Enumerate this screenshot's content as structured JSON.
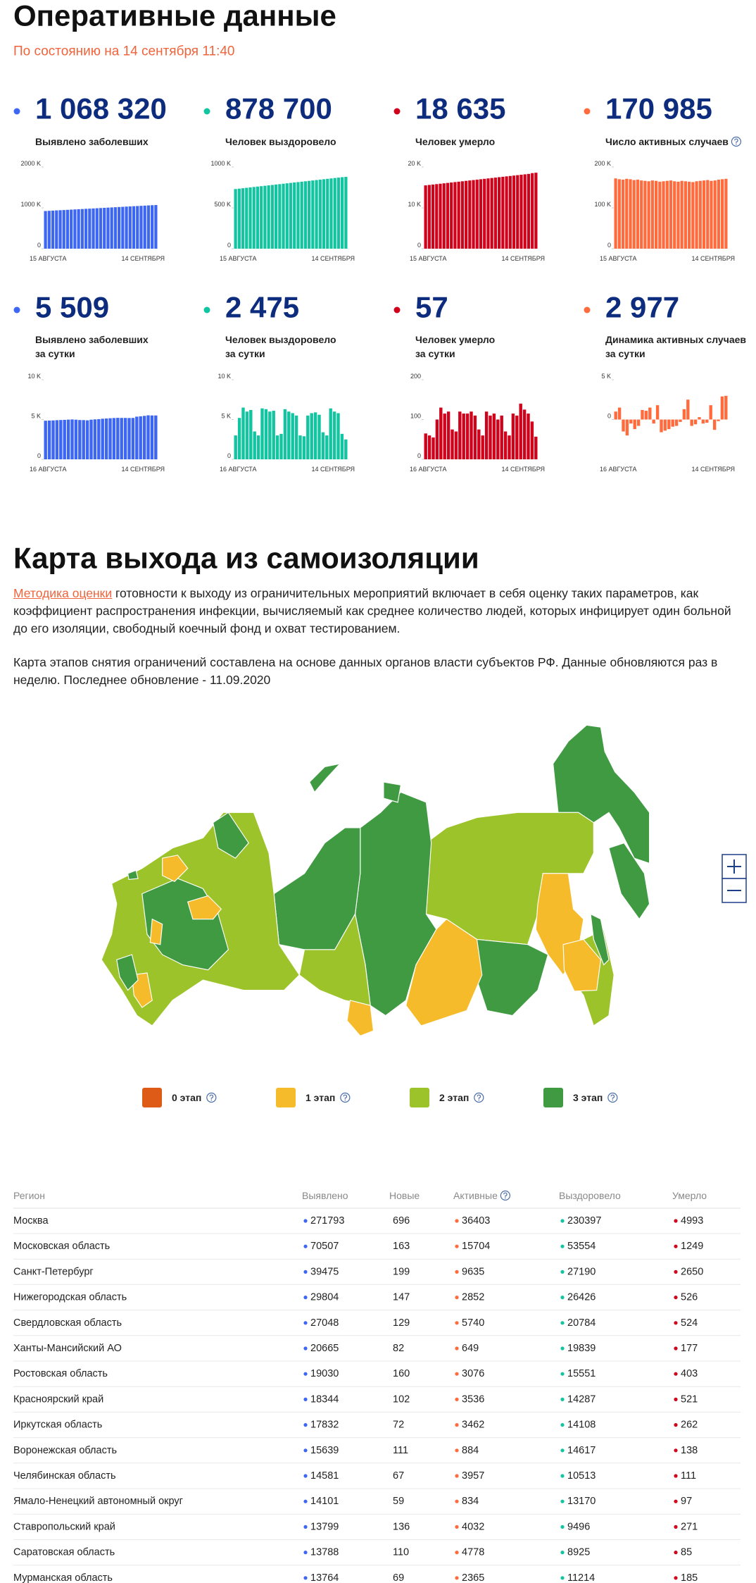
{
  "header": {
    "title": "Оперативные данные",
    "subtitle": "По состоянию на 14 сентября 11:40"
  },
  "chart_data": [
    {
      "type": "bar",
      "title": "1 068 320",
      "subtitle": [
        "Выявлено заболевших"
      ],
      "color": "#3d66f3",
      "categories": [
        "15 АВГУСТА",
        null,
        null,
        null,
        null,
        null,
        null,
        null,
        null,
        null,
        null,
        null,
        null,
        null,
        null,
        null,
        null,
        null,
        null,
        null,
        null,
        null,
        null,
        null,
        null,
        null,
        null,
        null,
        null,
        null,
        "14 СЕНТЯБРЯ"
      ],
      "values": [
        922,
        927,
        932,
        937,
        942,
        946,
        951,
        956,
        961,
        966,
        971,
        976,
        980,
        985,
        990,
        995,
        1000,
        1005,
        1010,
        1015,
        1020,
        1025,
        1030,
        1035,
        1040,
        1044,
        1049,
        1054,
        1059,
        1064,
        1068
      ],
      "ylim": [
        0,
        2000
      ],
      "yticks": [
        0,
        {
          "value": 1000,
          "label": "1000 K"
        },
        {
          "value": 2000,
          "label": "2000 K"
        }
      ]
    },
    {
      "type": "bar",
      "title": "878 700",
      "subtitle": [
        "Человек выздоровело"
      ],
      "color": "#13c4a0",
      "categories": [
        "15 АВГУСТА",
        null,
        null,
        null,
        null,
        null,
        null,
        null,
        null,
        null,
        null,
        null,
        null,
        null,
        null,
        null,
        null,
        null,
        null,
        null,
        null,
        null,
        null,
        null,
        null,
        null,
        null,
        null,
        null,
        null,
        "14 СЕНТЯБРЯ"
      ],
      "values": [
        730,
        735,
        740,
        745,
        750,
        755,
        760,
        765,
        770,
        775,
        780,
        785,
        790,
        795,
        800,
        805,
        810,
        815,
        820,
        825,
        830,
        835,
        840,
        845,
        850,
        855,
        860,
        865,
        870,
        875,
        879
      ],
      "ylim": [
        0,
        1000
      ],
      "yticks": [
        0,
        {
          "value": 500,
          "label": "500 K"
        },
        {
          "value": 1000,
          "label": "1000 K"
        }
      ]
    },
    {
      "type": "bar",
      "title": "18 635",
      "subtitle": [
        "Человек умерло"
      ],
      "color": "#d0021b",
      "categories": [
        "15 АВГУСТА",
        null,
        null,
        null,
        null,
        null,
        null,
        null,
        null,
        null,
        null,
        null,
        null,
        null,
        null,
        null,
        null,
        null,
        null,
        null,
        null,
        null,
        null,
        null,
        null,
        null,
        null,
        null,
        null,
        null,
        "14 СЕНТЯБРЯ"
      ],
      "values": [
        15.5,
        15.6,
        15.7,
        15.8,
        15.9,
        16.0,
        16.1,
        16.2,
        16.3,
        16.4,
        16.5,
        16.6,
        16.7,
        16.8,
        16.9,
        17.0,
        17.1,
        17.2,
        17.3,
        17.4,
        17.5,
        17.6,
        17.7,
        17.8,
        17.9,
        18.0,
        18.1,
        18.2,
        18.3,
        18.5,
        18.6
      ],
      "ylim": [
        0,
        20
      ],
      "yticks": [
        0,
        {
          "value": 10,
          "label": "10 K"
        },
        {
          "value": 20,
          "label": "20 K"
        }
      ]
    },
    {
      "type": "bar",
      "title": "170 985",
      "subtitle": [
        "Число активных случаев"
      ],
      "color": "#ff6b3d",
      "categories": [
        "15 АВГУСТА",
        null,
        null,
        null,
        null,
        null,
        null,
        null,
        null,
        null,
        null,
        null,
        null,
        null,
        null,
        null,
        null,
        null,
        null,
        null,
        null,
        null,
        null,
        null,
        null,
        null,
        null,
        null,
        null,
        null,
        "14 СЕНТЯБРЯ"
      ],
      "values": [
        172,
        170,
        169,
        171,
        170,
        168,
        169,
        167,
        166,
        165,
        167,
        166,
        164,
        165,
        166,
        167,
        165,
        164,
        166,
        165,
        164,
        163,
        165,
        166,
        167,
        168,
        166,
        167,
        169,
        170,
        171
      ],
      "ylim": [
        0,
        200
      ],
      "yticks": [
        0,
        {
          "value": 100,
          "label": "100 K"
        },
        {
          "value": 200,
          "label": "200 K"
        }
      ]
    },
    {
      "type": "bar",
      "title": "5 509",
      "subtitle": [
        "Выявлено заболевших",
        "за сутки"
      ],
      "color": "#3d66f3",
      "categories": [
        "16 АВГУСТА",
        null,
        null,
        null,
        null,
        null,
        null,
        null,
        null,
        null,
        null,
        null,
        null,
        null,
        null,
        null,
        null,
        null,
        null,
        null,
        null,
        null,
        null,
        null,
        null,
        null,
        null,
        null,
        null,
        "14 СЕНТЯБРЯ"
      ],
      "values": [
        4.85,
        4.87,
        4.89,
        4.92,
        4.94,
        4.96,
        4.99,
        5.01,
        4.98,
        4.94,
        4.93,
        4.9,
        4.98,
        5.02,
        5.05,
        5.1,
        5.13,
        5.16,
        5.19,
        5.21,
        5.2,
        5.2,
        5.19,
        5.2,
        5.36,
        5.4,
        5.46,
        5.53,
        5.51,
        5.51
      ],
      "ylim": [
        0,
        10
      ],
      "yticks": [
        0,
        {
          "value": 5,
          "label": "5 K"
        },
        {
          "value": 10,
          "label": "10 K"
        }
      ]
    },
    {
      "type": "bar",
      "title": "2 475",
      "subtitle": [
        "Человек выздоровело",
        "за сутки"
      ],
      "color": "#13c4a0",
      "categories": [
        "16 АВГУСТА",
        null,
        null,
        null,
        null,
        null,
        null,
        null,
        null,
        null,
        null,
        null,
        null,
        null,
        null,
        null,
        null,
        null,
        null,
        null,
        null,
        null,
        null,
        null,
        null,
        null,
        null,
        null,
        null,
        "14 СЕНТЯБРЯ"
      ],
      "values": [
        3.0,
        5.2,
        6.5,
        6.0,
        6.2,
        3.5,
        3.0,
        6.4,
        6.3,
        6.0,
        6.1,
        3.0,
        3.2,
        6.3,
        6.0,
        5.8,
        5.5,
        3.0,
        2.9,
        5.5,
        5.8,
        5.9,
        5.6,
        3.4,
        3.0,
        6.4,
        6.0,
        5.8,
        3.2,
        2.5
      ],
      "ylim": [
        0,
        10
      ],
      "yticks": [
        0,
        {
          "value": 5,
          "label": "5 K"
        },
        {
          "value": 10,
          "label": "10 K"
        }
      ]
    },
    {
      "type": "bar",
      "title": "57",
      "subtitle": [
        "Человек умерло",
        "за сутки"
      ],
      "color": "#d0021b",
      "categories": [
        "16 АВГУСТА",
        null,
        null,
        null,
        null,
        null,
        null,
        null,
        null,
        null,
        null,
        null,
        null,
        null,
        null,
        null,
        null,
        null,
        null,
        null,
        null,
        null,
        null,
        null,
        null,
        null,
        null,
        null,
        null,
        "14 СЕНТЯБРЯ"
      ],
      "values": [
        65,
        60,
        55,
        100,
        130,
        115,
        120,
        75,
        70,
        120,
        115,
        115,
        120,
        110,
        75,
        60,
        120,
        110,
        115,
        100,
        110,
        70,
        60,
        115,
        110,
        140,
        125,
        115,
        95,
        57
      ],
      "ylim": [
        0,
        200
      ],
      "yticks": [
        0,
        100,
        200
      ]
    },
    {
      "type": "bar",
      "title": "2 977",
      "subtitle": [
        "Динамика активных случаев",
        "за сутки"
      ],
      "color": "#ff6b3d",
      "categories": [
        "16 АВГУСТА",
        null,
        null,
        null,
        null,
        null,
        null,
        null,
        null,
        null,
        null,
        null,
        null,
        null,
        null,
        null,
        null,
        null,
        null,
        null,
        null,
        null,
        null,
        null,
        null,
        null,
        null,
        null,
        null,
        "14 СЕНТЯБРЯ"
      ],
      "values": [
        1.0,
        1.5,
        -1.5,
        -2.0,
        -0.5,
        -1.2,
        -0.8,
        1.2,
        1.1,
        1.5,
        -0.5,
        1.8,
        -1.6,
        -1.4,
        -1.2,
        -0.9,
        -0.8,
        -0.3,
        1.3,
        2.5,
        -0.8,
        -0.6,
        0.3,
        -0.5,
        -0.4,
        1.8,
        -1.3,
        -0.2,
        2.9,
        2.98
      ],
      "ylim": [
        -5,
        5
      ],
      "yticks": [
        0,
        {
          "value": 5,
          "label": "5 K"
        }
      ]
    }
  ],
  "map": {
    "title": "Карта выхода из самоизоляции",
    "intro_link": "Методика оценки",
    "intro_text": " готовности к выходу из ограничительных мероприятий включает в себя оценку таких параметров, как коэффициент распространения инфекции, вычисляемый как среднее количество людей, которых инфицирует один больной до его изоляции, свободный коечный фонд и охват тестированием.",
    "note": "Карта этапов снятия ограничений составлена на основе данных органов власти субъектов РФ. Данные обновляются раз в неделю. Последнее обновление - 11.09.2020",
    "legend": [
      {
        "label": "0 этап",
        "color": "#dd5a17"
      },
      {
        "label": "1 этап",
        "color": "#f5bb2a"
      },
      {
        "label": "2 этап",
        "color": "#9cc42a"
      },
      {
        "label": "3 этап",
        "color": "#3f9a42"
      }
    ]
  },
  "table": {
    "headers": [
      "Регион",
      "Выявлено",
      "Новые",
      "Активные",
      "Выздоровело",
      "Умерло"
    ],
    "rows": [
      [
        "Москва",
        271793,
        696,
        36403,
        230397,
        4993
      ],
      [
        "Московская область",
        70507,
        163,
        15704,
        53554,
        1249
      ],
      [
        "Санкт-Петербург",
        39475,
        199,
        9635,
        27190,
        2650
      ],
      [
        "Нижегородская область",
        29804,
        147,
        2852,
        26426,
        526
      ],
      [
        "Свердловская область",
        27048,
        129,
        5740,
        20784,
        524
      ],
      [
        "Ханты-Мансийский АО",
        20665,
        82,
        649,
        19839,
        177
      ],
      [
        "Ростовская область",
        19030,
        160,
        3076,
        15551,
        403
      ],
      [
        "Красноярский край",
        18344,
        102,
        3536,
        14287,
        521
      ],
      [
        "Иркутская область",
        17832,
        72,
        3462,
        14108,
        262
      ],
      [
        "Воронежская область",
        15639,
        111,
        884,
        14617,
        138
      ],
      [
        "Челябинская область",
        14581,
        67,
        3957,
        10513,
        111
      ],
      [
        "Ямало-Ненецкий автономный округ",
        14101,
        59,
        834,
        13170,
        97
      ],
      [
        "Ставропольский край",
        13799,
        136,
        4032,
        9496,
        271
      ],
      [
        "Саратовская область",
        13788,
        110,
        4778,
        8925,
        85
      ],
      [
        "Мурманская область",
        13764,
        69,
        2365,
        11214,
        185
      ]
    ]
  }
}
